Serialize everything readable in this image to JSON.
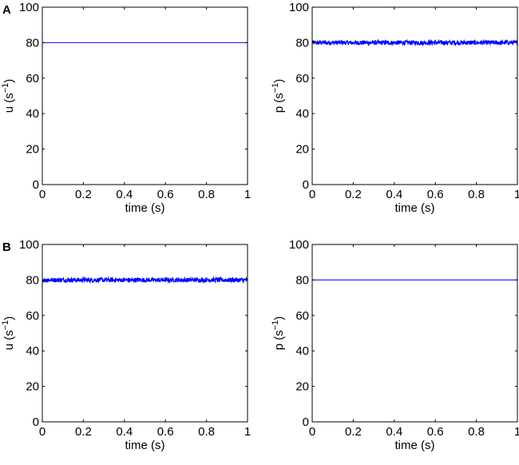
{
  "chart_data": [
    {
      "type": "line",
      "panel_label": "A",
      "xlabel": "time (s)",
      "ylabel_base": "u  (s",
      "ylabel_exp": "−1",
      "ylabel_close": ")",
      "xlim": [
        0,
        1
      ],
      "ylim": [
        0,
        100
      ],
      "xticks": [
        0,
        0.2,
        0.4,
        0.6,
        0.8,
        1
      ],
      "xtick_labels": [
        "0",
        "0.2",
        "0.4",
        "0.6",
        "0.8",
        "1"
      ],
      "yticks": [
        0,
        20,
        40,
        60,
        80,
        100
      ],
      "ytick_labels": [
        "0",
        "20",
        "40",
        "60",
        "80",
        "100"
      ],
      "grid": false,
      "series": [
        {
          "x": [
            0,
            1
          ],
          "y": [
            80,
            80
          ],
          "noise": 0,
          "color": "#0000ff"
        }
      ]
    },
    {
      "type": "line",
      "xlabel": "time (s)",
      "ylabel_base": "p  (s",
      "ylabel_exp": "−1",
      "ylabel_close": ")",
      "xlim": [
        0,
        1
      ],
      "ylim": [
        0,
        100
      ],
      "xticks": [
        0,
        0.2,
        0.4,
        0.6,
        0.8,
        1
      ],
      "xtick_labels": [
        "0",
        "0.2",
        "0.4",
        "0.6",
        "0.8",
        "1"
      ],
      "yticks": [
        0,
        20,
        40,
        60,
        80,
        100
      ],
      "ytick_labels": [
        "0",
        "20",
        "40",
        "60",
        "80",
        "100"
      ],
      "grid": false,
      "series": [
        {
          "x": [
            0,
            1
          ],
          "y": [
            80,
            80
          ],
          "noise": 1,
          "color": "#0000ff"
        }
      ]
    },
    {
      "type": "line",
      "panel_label": "B",
      "xlabel": "time (s)",
      "ylabel_base": "u  (s",
      "ylabel_exp": "−1",
      "ylabel_close": ")",
      "xlim": [
        0,
        1
      ],
      "ylim": [
        0,
        100
      ],
      "xticks": [
        0,
        0.2,
        0.4,
        0.6,
        0.8,
        1
      ],
      "xtick_labels": [
        "0",
        "0.2",
        "0.4",
        "0.6",
        "0.8",
        "1"
      ],
      "yticks": [
        0,
        20,
        40,
        60,
        80,
        100
      ],
      "ytick_labels": [
        "0",
        "20",
        "40",
        "60",
        "80",
        "100"
      ],
      "grid": false,
      "series": [
        {
          "x": [
            0,
            1
          ],
          "y": [
            80,
            80
          ],
          "noise": 1,
          "color": "#0000ff"
        }
      ]
    },
    {
      "type": "line",
      "xlabel": "time (s)",
      "ylabel_base": "p  (s",
      "ylabel_exp": "−1",
      "ylabel_close": ")",
      "xlim": [
        0,
        1
      ],
      "ylim": [
        0,
        100
      ],
      "xticks": [
        0,
        0.2,
        0.4,
        0.6,
        0.8,
        1
      ],
      "xtick_labels": [
        "0",
        "0.2",
        "0.4",
        "0.6",
        "0.8",
        "1"
      ],
      "yticks": [
        0,
        20,
        40,
        60,
        80,
        100
      ],
      "ytick_labels": [
        "0",
        "20",
        "40",
        "60",
        "80",
        "100"
      ],
      "grid": false,
      "series": [
        {
          "x": [
            0,
            1
          ],
          "y": [
            80,
            80
          ],
          "noise": 0,
          "color": "#0000ff"
        }
      ]
    }
  ]
}
